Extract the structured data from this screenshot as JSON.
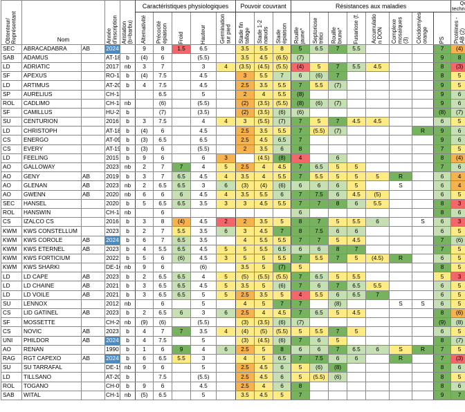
{
  "groups": {
    "physio": "Caractéristiques physiologiques",
    "pouvoir": "Pouvoir couvrant",
    "resist": "Résistances aux maladies",
    "qualite": "Qualité technologique"
  },
  "headers": {
    "obtenteur": "Obtenteur/ Représentant",
    "nom": "Nom",
    "annee": "Année d'inscription",
    "aristation": "Aristation (b=barbu)",
    "alternativite": "Alternativité",
    "precocite": "Précocité épiaison",
    "froid": "Froid",
    "hauteur": "Hauteur",
    "germination": "Germination sur pied",
    "stade_fin": "Stade fin tallage",
    "stade_12": "Stade 1-2 nœuds",
    "stade_epi": "Stade épiaison",
    "rouille_j": "Rouille jaune*",
    "septoriose": "Septoriose tritici",
    "rouille_b": "Rouille brune*",
    "fusariose": "Fusariose (f.",
    "accumulation": "Accumulatio n DON",
    "complexe": "Complexe mosaïques (3)",
    "cecidomyies": "Cécidomyies orange",
    "ps": "PS",
    "proteines": "Protéines - AB (2)"
  },
  "rows": [
    {
      "o": "SEC",
      "n": "ABRACADABRA",
      "ab": "AB",
      "an": "2024",
      "ar": "",
      "alt": "9",
      "pre": "8",
      "fr": "1.5",
      "ha": "6.5",
      "ge": "",
      "sf": "3.5",
      "s12": "5.5",
      "se": "8",
      "rj": "5",
      "st": "6.5",
      "rb": "7",
      "fu": "5.5",
      "ac": "",
      "cm": "",
      "ce": "",
      "ps": "7",
      "pr": "(4)"
    },
    {
      "o": "SAB",
      "n": "ADAMUS",
      "ab": "",
      "an": "AT-18",
      "ar": "b",
      "alt": "(4)",
      "pre": "6",
      "fr": "",
      "ha": "(5.5)",
      "ge": "",
      "sf": "3.5",
      "s12": "4.5",
      "se": "(6.5)",
      "rj": "(7)",
      "st": "",
      "rb": "",
      "fu": "",
      "ac": "",
      "cm": "",
      "ce": "",
      "ps": "9",
      "pr": "8"
    },
    {
      "o": "LD",
      "n": "ADRIATIC",
      "ab": "",
      "an": "2017",
      "ar": "nb",
      "alt": "3",
      "pre": "7",
      "fr": "",
      "ha": "3",
      "ge": "4",
      "sf": "(3.5)",
      "s12": "(4.5)",
      "se": "(5.5)",
      "rj": "(4)",
      "st": "5",
      "rb": "7",
      "fu": "5.5",
      "ac": "4.5",
      "cm": "",
      "ce": "",
      "ps": "8",
      "pr": "(3)"
    },
    {
      "o": "SF",
      "n": "APEXUS",
      "ab": "",
      "an": "RO-19",
      "ar": "b",
      "alt": "(4)",
      "pre": "7.5",
      "fr": "",
      "ha": "4.5",
      "ge": "",
      "sf": "3",
      "s12": "5.5",
      "se": "7",
      "rj": "6",
      "st": "(6)",
      "rb": "7",
      "fu": "",
      "ac": "",
      "cm": "",
      "ce": "",
      "ps": "8",
      "pr": "5"
    },
    {
      "o": "LD",
      "n": "ARTIMUS",
      "ab": "",
      "an": "AT-20",
      "ar": "b",
      "alt": "4",
      "pre": "7.5",
      "fr": "",
      "ha": "4.5",
      "ge": "",
      "sf": "2.5",
      "s12": "3.5",
      "se": "5.5",
      "rj": "7",
      "st": "5.5",
      "rb": "(7)",
      "fu": "",
      "ac": "",
      "cm": "",
      "ce": "",
      "ps": "9",
      "pr": "5"
    },
    {
      "o": "SP",
      "n": "AURELIUS",
      "ab": "",
      "an": "CH-18",
      "ar": "",
      "alt": "",
      "pre": "6.5",
      "fr": "",
      "ha": "5",
      "ge": "",
      "sf": "2",
      "s12": "4",
      "se": "5.5",
      "rj": "(8)",
      "st": "",
      "rb": "",
      "fu": "",
      "ac": "",
      "cm": "",
      "ce": "",
      "ps": "9",
      "pr": "6"
    },
    {
      "o": "ROL",
      "n": "CADLIMO",
      "ab": "",
      "an": "CH-18",
      "ar": "nb",
      "alt": "",
      "pre": "(6)",
      "fr": "",
      "ha": "(5.5)",
      "ge": "",
      "sf": "(2)",
      "s12": "(3.5)",
      "se": "(5.5)",
      "rj": "(8)",
      "st": "(6)",
      "rb": "(7)",
      "fu": "",
      "ac": "",
      "cm": "",
      "ce": "",
      "ps": "9",
      "pr": "6"
    },
    {
      "o": "SF",
      "n": "CAMILLUS",
      "ab": "",
      "an": "HU-22",
      "ar": "b",
      "alt": "",
      "pre": "(7)",
      "fr": "",
      "ha": "(3.5)",
      "ge": "",
      "sf": "(2)",
      "s12": "(3.5)",
      "se": "(6)",
      "rj": "(6)",
      "st": "",
      "rb": "",
      "fu": "",
      "ac": "",
      "cm": "",
      "ce": "",
      "ps": "(8)",
      "pr": "(7)"
    },
    {
      "o": "SU",
      "n": "CENTURION",
      "ab": "",
      "an": "2016",
      "ar": "b",
      "alt": "3",
      "pre": "7.5",
      "fr": "",
      "ha": "4",
      "ge": "4",
      "sf": "3",
      "s12": "(5.5)",
      "se": "(7)",
      "rj": "7",
      "st": "5",
      "rb": "7",
      "fu": "4.5",
      "ac": "4.5",
      "cm": "",
      "ce": "",
      "ps": "6",
      "pr": "5"
    },
    {
      "o": "LD",
      "n": "CHRISTOPH",
      "ab": "",
      "an": "AT-18",
      "ar": "b",
      "alt": "(4)",
      "pre": "6",
      "fr": "",
      "ha": "4.5",
      "ge": "",
      "sf": "2.5",
      "s12": "3.5",
      "se": "5.5",
      "rj": "7",
      "st": "(5.5)",
      "rb": "(7)",
      "fu": "",
      "ac": "",
      "cm": "",
      "ce": "R",
      "ps": "9",
      "pr": "6"
    },
    {
      "o": "CS",
      "n": "ENERGO",
      "ab": "",
      "an": "AT-09",
      "ar": "b",
      "alt": "(3)",
      "pre": "6.5",
      "fr": "",
      "ha": "6.5",
      "ge": "",
      "sf": "2.5",
      "s12": "4.5",
      "se": "6.5",
      "rj": "7",
      "st": "",
      "rb": "",
      "fu": "",
      "ac": "",
      "cm": "",
      "ce": "",
      "ps": "9",
      "pr": "6"
    },
    {
      "o": "CS",
      "n": "EVERY",
      "ab": "",
      "an": "AT-19",
      "ar": "b",
      "alt": "(3)",
      "pre": "6",
      "fr": "",
      "ha": "(5.5)",
      "ge": "",
      "sf": "2",
      "s12": "3.5",
      "se": "6",
      "rj": "8",
      "st": "",
      "rb": "",
      "fu": "",
      "ac": "",
      "cm": "",
      "ce": "",
      "ps": "7",
      "pr": "5"
    },
    {
      "o": "LD",
      "n": "FEELING",
      "ab": "",
      "an": "2015",
      "ar": "b",
      "alt": "9",
      "pre": "6",
      "fr": "",
      "ha": "6",
      "ge": "3",
      "sf": "",
      "s12": "(4.5)",
      "se": "(8)",
      "rj": "4",
      "st": "",
      "rb": "6",
      "fu": "",
      "ac": "",
      "cm": "",
      "ce": "",
      "ps": "8",
      "pr": "(4)"
    },
    {
      "o": "AO",
      "n": "GALLOWAY",
      "ab": "",
      "an": "2023",
      "ar": "nb",
      "alt": "2",
      "pre": "7",
      "fr": "7",
      "ha": "4",
      "ge": "5",
      "sf": "2.5",
      "s12": "4",
      "se": "4.5",
      "rj": "7",
      "st": "6.5",
      "rb": "5",
      "fu": "5",
      "ac": "",
      "cm": "",
      "ce": "",
      "ps": "7",
      "pr": "6"
    },
    {
      "o": "AO",
      "n": "GENY",
      "ab": "AB",
      "an": "2019",
      "ar": "b",
      "alt": "3",
      "pre": "7",
      "fr": "6.5",
      "ha": "4.5",
      "ge": "4",
      "sf": "3.5",
      "s12": "4",
      "se": "5.5",
      "rj": "7",
      "st": "5.5",
      "rb": "5",
      "fu": "5",
      "ac": "5",
      "cm": "R",
      "ce": "",
      "ps": "6",
      "pr": "4"
    },
    {
      "o": "AO",
      "n": "GLENAN",
      "ab": "AB",
      "an": "2023",
      "ar": "nb",
      "alt": "2",
      "pre": "6.5",
      "fr": "6.5",
      "ha": "3",
      "ge": "6",
      "sf": "(3)",
      "s12": "(4)",
      "se": "(6)",
      "rj": "6",
      "st": "6",
      "rb": "6",
      "fu": "5",
      "ac": "",
      "cm": "S",
      "ce": "",
      "ps": "6",
      "pr": "4"
    },
    {
      "o": "AO",
      "n": "GWENN",
      "ab": "AB",
      "an": "2020",
      "ar": "nb",
      "alt": "6",
      "pre": "6",
      "fr": "6",
      "ha": "4.5",
      "ge": "4",
      "sf": "3.5",
      "s12": "5.5",
      "se": "6",
      "rj": "7",
      "st": "7.5",
      "rb": "6",
      "fu": "4.5",
      "ac": "(5)",
      "cm": "",
      "ce": "",
      "ps": "6",
      "pr": "5"
    },
    {
      "o": "SEC",
      "n": "HANSEL",
      "ab": "",
      "an": "2020",
      "ar": "b",
      "alt": "5",
      "pre": "6.5",
      "fr": "6.5",
      "ha": "3.5",
      "ge": "3",
      "sf": "3",
      "s12": "4.5",
      "se": "5.5",
      "rj": "7",
      "st": "7",
      "rb": "8",
      "fu": "6",
      "ac": "5.5",
      "cm": "",
      "ce": "",
      "ps": "8",
      "pr": "3"
    },
    {
      "o": "ROL",
      "n": "HANSWIN",
      "ab": "",
      "an": "CH-13",
      "ar": "nb",
      "alt": "",
      "pre": "6",
      "fr": "",
      "ha": "",
      "ge": "",
      "sf": "",
      "s12": "",
      "se": "",
      "rj": "6",
      "st": "",
      "rb": "",
      "fu": "",
      "ac": "",
      "cm": "",
      "ce": "",
      "ps": "8",
      "pr": "6"
    },
    {
      "o": "CS",
      "n": "IZALCO CS",
      "ab": "",
      "an": "2016",
      "ar": "b",
      "alt": "3",
      "pre": "8",
      "fr": "(4)",
      "ha": "4.5",
      "ge": "2",
      "sf": "2",
      "s12": "3.5",
      "se": "5",
      "rj": "8",
      "st": "7",
      "rb": "5",
      "fu": "5.5",
      "ac": "6",
      "cm": "",
      "ce": "S",
      "ps": "6",
      "pr": "3"
    },
    {
      "o": "KWM",
      "n": "KWS CONSTELLUM",
      "ab": "",
      "an": "2023",
      "ar": "b",
      "alt": "2",
      "pre": "7",
      "fr": "5.5",
      "ha": "3.5",
      "ge": "6",
      "sf": "3",
      "s12": "4.5",
      "se": "7",
      "rj": "8",
      "st": "7.5",
      "rb": "6",
      "fu": "6",
      "ac": "",
      "cm": "",
      "ce": "",
      "ps": "6",
      "pr": "5"
    },
    {
      "o": "KWM",
      "n": "KWS COROLE",
      "ab": "AB",
      "an": "2024",
      "ar": "b",
      "alt": "6",
      "pre": "7",
      "fr": "6.5",
      "ha": "3.5",
      "ge": "",
      "sf": "4",
      "s12": "5.5",
      "se": "5.5",
      "rj": "7",
      "st": "7",
      "rb": "5",
      "fu": "4.5",
      "ac": "",
      "cm": "",
      "ce": "",
      "ps": "7",
      "pr": "(6)"
    },
    {
      "o": "KWM",
      "n": "KWS ETERNEL",
      "ab": "AB",
      "an": "2023",
      "ar": "b",
      "alt": "4",
      "pre": "5.5",
      "fr": "6.5",
      "ha": "4.5",
      "ge": "5",
      "sf": "5",
      "s12": "5.5",
      "se": "6.5",
      "rj": "6",
      "st": "6",
      "rb": "8",
      "fu": "7",
      "ac": "",
      "cm": "",
      "ce": "",
      "ps": "7",
      "pr": "5"
    },
    {
      "o": "KWM",
      "n": "KWS FORTICIUM",
      "ab": "",
      "an": "2022",
      "ar": "b",
      "alt": "5",
      "pre": "6",
      "fr": "(6)",
      "ha": "4.5",
      "ge": "3",
      "sf": "5",
      "s12": "5",
      "se": "5.5",
      "rj": "7",
      "st": "5.5",
      "rb": "7",
      "fu": "5",
      "ac": "(4.5)",
      "cm": "R",
      "ce": "",
      "ps": "6",
      "pr": "5"
    },
    {
      "o": "KWM",
      "n": "KWS SHARKI",
      "ab": "",
      "an": "DE-16",
      "ar": "nb",
      "alt": "9",
      "pre": "6",
      "fr": "",
      "ha": "(6)",
      "ge": "",
      "sf": "3.5",
      "s12": "5",
      "se": "(7)",
      "rj": "5",
      "st": "",
      "rb": "",
      "fu": "",
      "ac": "",
      "cm": "",
      "ce": "",
      "ps": "8",
      "pr": "5"
    },
    {
      "o": "LD",
      "n": "LD CAPE",
      "ab": "AB",
      "an": "2023",
      "ar": "b",
      "alt": "2",
      "pre": "6.5",
      "fr": "6.5",
      "ha": "4",
      "ge": "5",
      "sf": "(5)",
      "s12": "(5.5)",
      "se": "(5.5)",
      "rj": "7",
      "st": "6.5",
      "rb": "5",
      "fu": "5.5",
      "ac": "",
      "cm": "",
      "ce": "",
      "ps": "5",
      "pr": "3"
    },
    {
      "o": "LD",
      "n": "LD CHAINE",
      "ab": "AB",
      "an": "2021",
      "ar": "b",
      "alt": "3",
      "pre": "6.5",
      "fr": "6.5",
      "ha": "4.5",
      "ge": "5",
      "sf": "3.5",
      "s12": "5",
      "se": "(6)",
      "rj": "7",
      "st": "6",
      "rb": "7",
      "fu": "6.5",
      "ac": "5.5",
      "cm": "",
      "ce": "",
      "ps": "6",
      "pr": "5"
    },
    {
      "o": "LD",
      "n": "LD VOILE",
      "ab": "AB",
      "an": "2021",
      "ar": "b",
      "alt": "3",
      "pre": "6.5",
      "fr": "6.5",
      "ha": "5",
      "ge": "5",
      "sf": "2.5",
      "s12": "3.5",
      "se": "5",
      "rj": "4",
      "st": "5.5",
      "rb": "6",
      "fu": "6.5",
      "ac": "7",
      "cm": "",
      "ce": "",
      "ps": "6",
      "pr": "5"
    },
    {
      "o": "SU",
      "n": "LENNOX",
      "ab": "",
      "an": "2012",
      "ar": "nb",
      "alt": "",
      "pre": "6",
      "fr": "",
      "ha": "5",
      "ge": "",
      "sf": "4",
      "s12": "5",
      "se": "7",
      "rj": "7",
      "st": "",
      "rb": "(8)",
      "fu": "",
      "ac": "",
      "cm": "S",
      "ce": "S",
      "ps": "6",
      "pr": "5"
    },
    {
      "o": "CS",
      "n": "LID GATINEL",
      "ab": "AB",
      "an": "2023",
      "ar": "b",
      "alt": "2",
      "pre": "6.5",
      "fr": "6",
      "ha": "3",
      "ge": "6",
      "sf": "2.5",
      "s12": "4",
      "se": "4.5",
      "rj": "7",
      "st": "6.5",
      "rb": "5",
      "fu": "4.5",
      "ac": "",
      "cm": "",
      "ce": "",
      "ps": "8",
      "pr": "(6)"
    },
    {
      "o": "SF",
      "n": "MOSSETTE",
      "ab": "",
      "an": "CH-20",
      "ar": "nb",
      "alt": "(9)",
      "pre": "(6)",
      "fr": "",
      "ha": "(5.5)",
      "ge": "",
      "sf": "(3)",
      "s12": "(3.5)",
      "se": "(6)",
      "rj": "(7)",
      "st": "",
      "rb": "",
      "fu": "",
      "ac": "",
      "cm": "",
      "ce": "",
      "ps": "(9)",
      "pr": "(8)"
    },
    {
      "o": "CS",
      "n": "NOVIC",
      "ab": "AB",
      "an": "2023",
      "ar": "b",
      "alt": "4",
      "pre": "7",
      "fr": "7",
      "ha": "3.5",
      "ge": "4",
      "sf": "(4)",
      "s12": "(5)",
      "se": "(5.5)",
      "rj": "5",
      "st": "5.5",
      "rb": "7",
      "fu": "5",
      "ac": "",
      "cm": "",
      "ce": "",
      "ps": "6",
      "pr": "5"
    },
    {
      "o": "UNI",
      "n": "PHILDOR",
      "ab": "AB",
      "an": "2024",
      "ar": "b",
      "alt": "4",
      "pre": "7.5",
      "fr": "",
      "ha": "5",
      "ge": "",
      "sf": "(3)",
      "s12": "(4.5)",
      "se": "(6)",
      "rj": "7",
      "st": "6",
      "rb": "5",
      "fu": "",
      "ac": "",
      "cm": "",
      "ce": "",
      "ps": "8",
      "pr": "(7)"
    },
    {
      "o": "AO",
      "n": "RENAN",
      "ab": "",
      "an": "1990",
      "ar": "b",
      "alt": "1",
      "pre": "6",
      "fr": "9",
      "ha": "4",
      "ge": "6",
      "sf": "2.5",
      "s12": "5",
      "se": "8",
      "rj": "6",
      "st": "6",
      "rb": "7",
      "fu": "6.5",
      "ac": "6",
      "cm": "S",
      "ce": "R",
      "ps": "7",
      "pr": "5"
    },
    {
      "o": "RAG",
      "n": "RGT CAPEXO",
      "ab": "AB",
      "an": "2024",
      "ar": "b",
      "alt": "6",
      "pre": "6.5",
      "fr": "5.5",
      "ha": "3",
      "ge": "",
      "sf": "4",
      "s12": "5",
      "se": "6.5",
      "rj": "7",
      "st": "7.5",
      "rb": "6",
      "fu": "6",
      "ac": "",
      "cm": "R",
      "ce": "",
      "ps": "7",
      "pr": "(3)"
    },
    {
      "o": "SU",
      "n": "SU TARRAFAL",
      "ab": "",
      "an": "DE-19",
      "ar": "nb",
      "alt": "9",
      "pre": "6",
      "fr": "",
      "ha": "5",
      "ge": "",
      "sf": "2.5",
      "s12": "4.5",
      "se": "6",
      "rj": "5",
      "st": "(6)",
      "rb": "(8)",
      "fu": "",
      "ac": "",
      "cm": "",
      "ce": "",
      "ps": "8",
      "pr": "6"
    },
    {
      "o": "LD",
      "n": "TILLSANO",
      "ab": "",
      "an": "AT-20",
      "ar": "b",
      "alt": "",
      "pre": "7.5",
      "fr": "",
      "ha": "(5.5)",
      "ge": "",
      "sf": "2.5",
      "s12": "4.5",
      "se": "6",
      "rj": "5",
      "st": "(5.5)",
      "rb": "(6)",
      "fu": "",
      "ac": "",
      "cm": "",
      "ce": "",
      "ps": "8",
      "pr": "5"
    },
    {
      "o": "ROL",
      "n": "TOGANO",
      "ab": "",
      "an": "CH-09",
      "ar": "b",
      "alt": "9",
      "pre": "6",
      "fr": "",
      "ha": "4.5",
      "ge": "",
      "sf": "2.5",
      "s12": "4",
      "se": "6",
      "rj": "8",
      "st": "",
      "rb": "",
      "fu": "",
      "ac": "",
      "cm": "",
      "ce": "",
      "ps": "8",
      "pr": "6"
    },
    {
      "o": "SAB",
      "n": "WITAL",
      "ab": "",
      "an": "CH-18",
      "ar": "nb",
      "alt": "(5)",
      "pre": "6.5",
      "fr": "",
      "ha": "5",
      "ge": "",
      "sf": "3.5",
      "s12": "4.5",
      "se": "5",
      "rj": "7",
      "st": "",
      "rb": "",
      "fu": "",
      "ac": "",
      "cm": "",
      "ce": "",
      "ps": "9",
      "pr": "7"
    }
  ]
}
